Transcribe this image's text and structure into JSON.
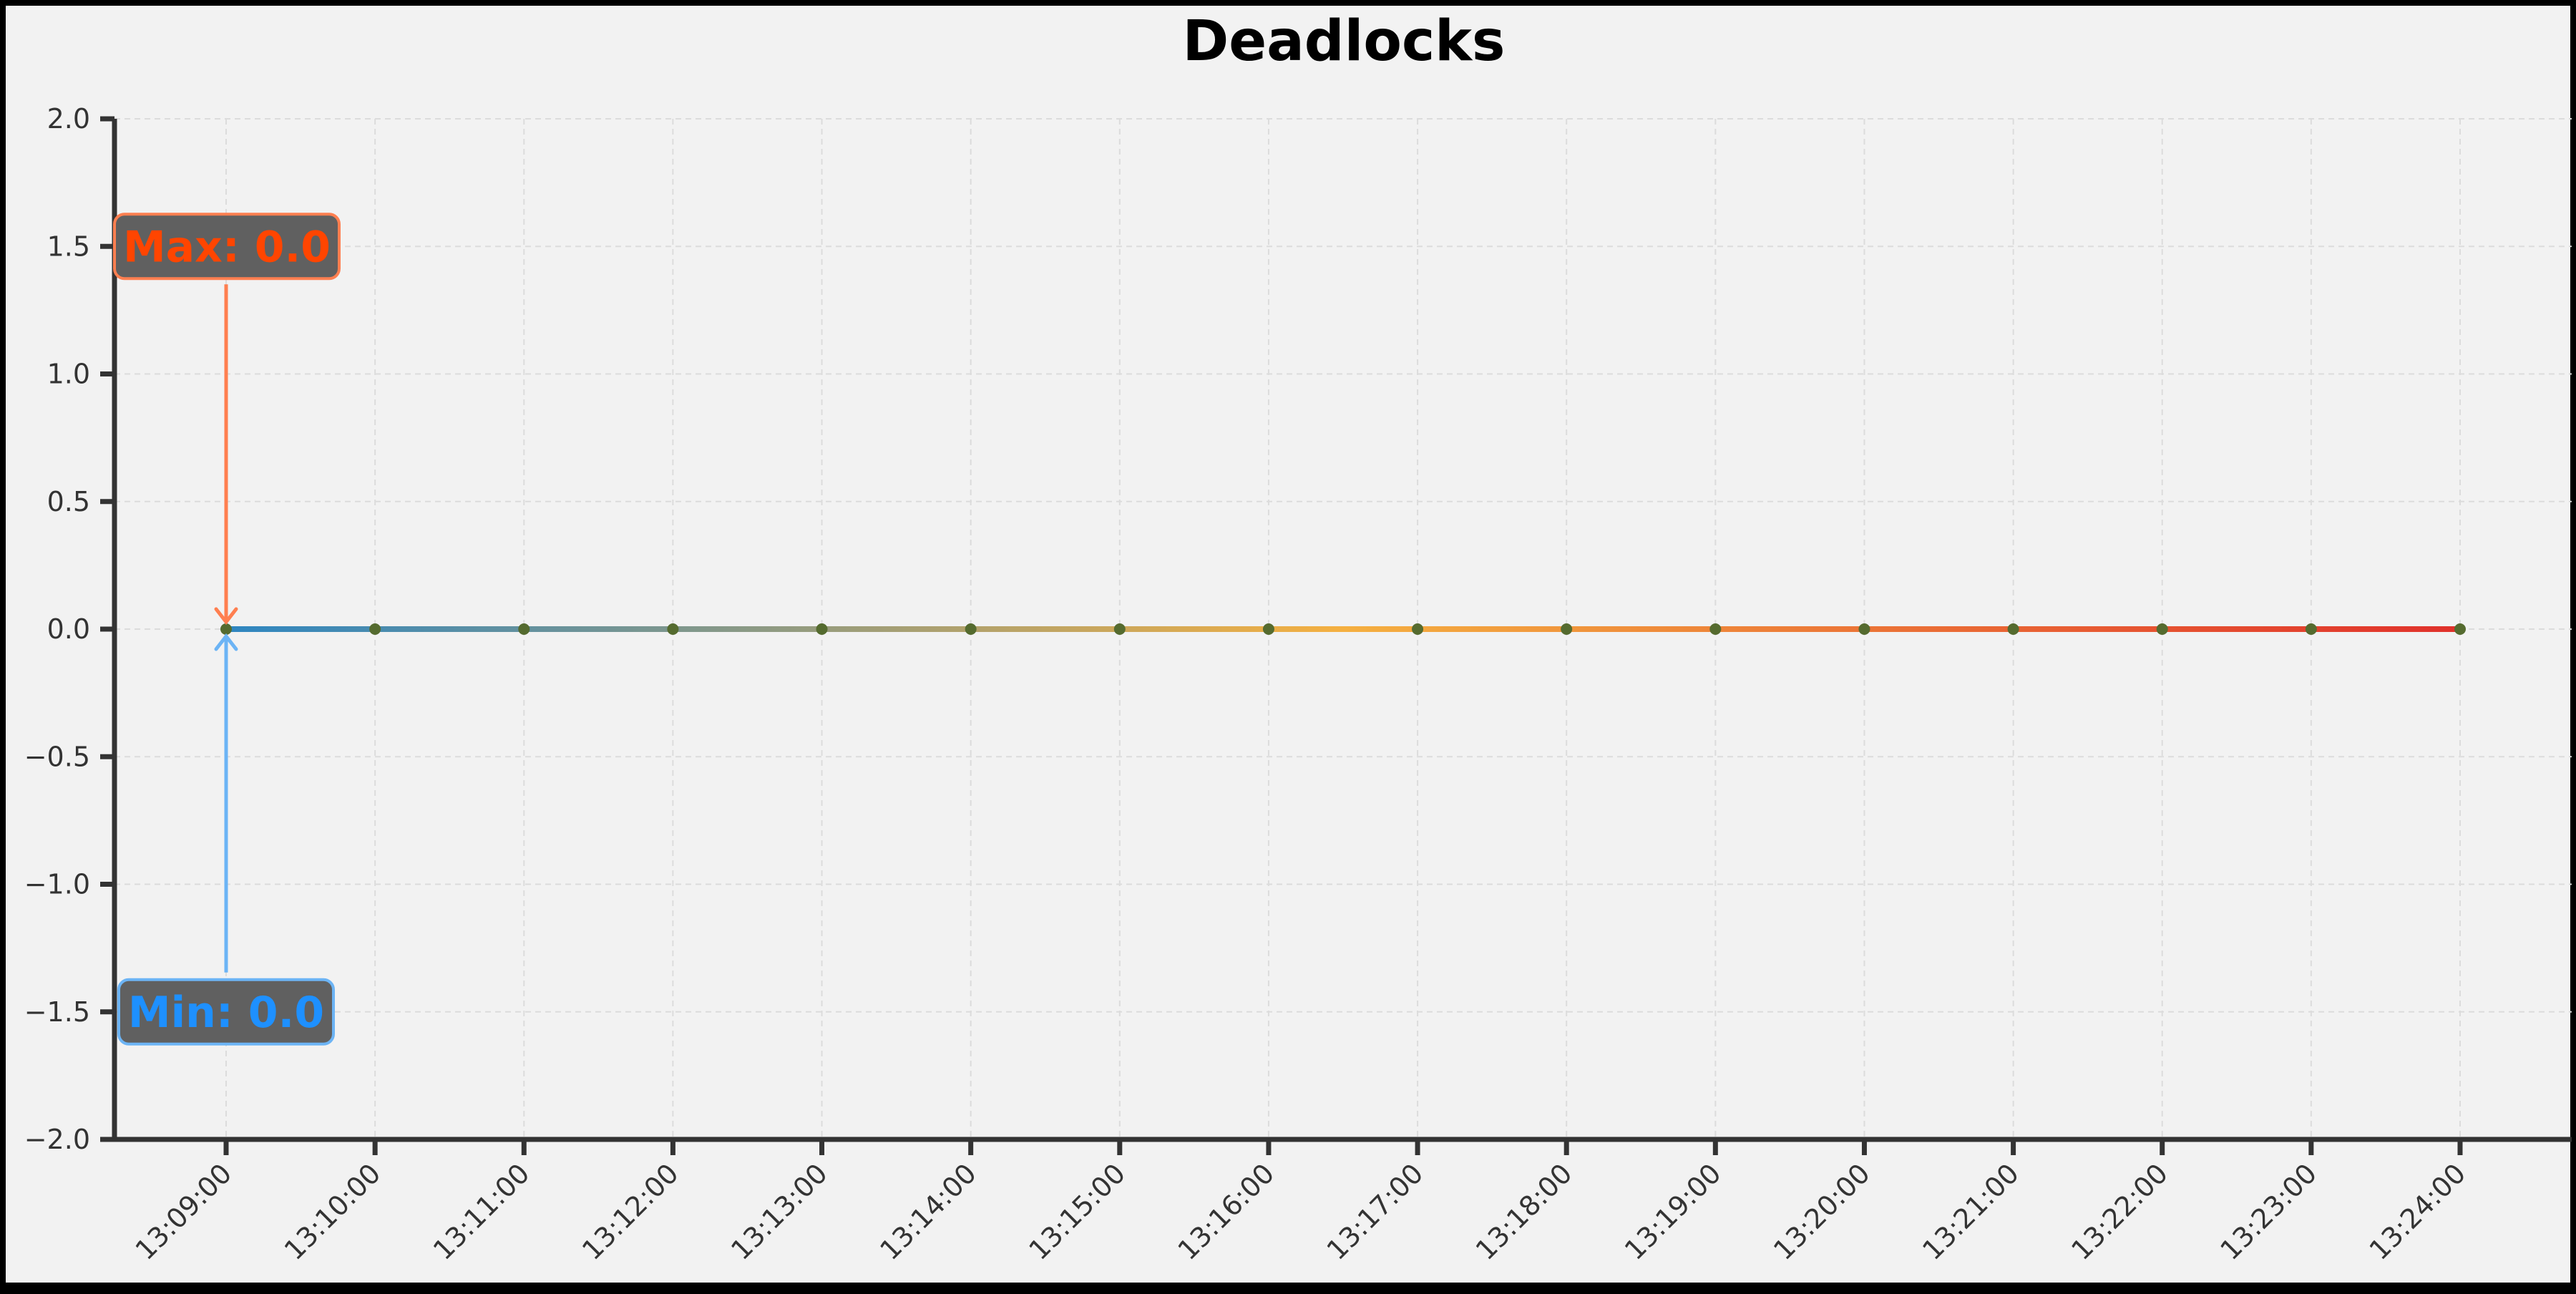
{
  "chart_data": {
    "type": "line",
    "title": "Deadlocks",
    "xlabel": "",
    "ylabel": "",
    "x": [
      "13:09:00",
      "13:10:00",
      "13:11:00",
      "13:12:00",
      "13:13:00",
      "13:14:00",
      "13:15:00",
      "13:16:00",
      "13:17:00",
      "13:18:00",
      "13:19:00",
      "13:20:00",
      "13:21:00",
      "13:22:00",
      "13:23:00",
      "13:24:00"
    ],
    "series": [
      {
        "values": [
          0,
          0,
          0,
          0,
          0,
          0,
          0,
          0,
          0,
          0,
          0,
          0,
          0,
          0,
          0,
          0
        ]
      }
    ],
    "ylim": [
      -2.0,
      2.0
    ],
    "yticks": [
      "2.0",
      "1.5",
      "1.0",
      "0.5",
      "0.0",
      "−0.5",
      "−1.0",
      "−1.5",
      "−2.0"
    ],
    "grid": true,
    "line_gradient": [
      "#2e86c1",
      "#f5b041",
      "#e0312b"
    ],
    "marker_color": "#556b2f",
    "annotations": [
      {
        "label": "Max: 0.0",
        "x": "13:09:00",
        "y": 0.0,
        "text_y": 1.5,
        "color": "#ff4500",
        "arrow_color": "#ff7f50"
      },
      {
        "label": "Min: 0.0",
        "x": "13:09:00",
        "y": 0.0,
        "text_y": -1.5,
        "color": "#1e90ff",
        "arrow_color": "#6cb4f5"
      }
    ]
  }
}
